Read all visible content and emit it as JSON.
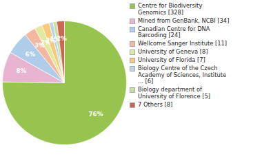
{
  "chart_data": {
    "type": "pie",
    "categories": [
      "Centre for Biodiversity\nGenomics [328]",
      "Mined from GenBank, NCBI [34]",
      "Canadian Centre for DNA\nBarcoding [24]",
      "Wellcome Sanger Institute [11]",
      "University of Geneva [8]",
      "University of Florida [7]",
      "Biology Centre of the Czech\nAcademy of Sciences, Institute\n... [6]",
      "Biology department of\nUniversity of Florence [5]",
      "7 Others [8]"
    ],
    "values": [
      76,
      8,
      6,
      3,
      2,
      2,
      1,
      1,
      2
    ],
    "value_labels": [
      "76%",
      "8%",
      "6%",
      "3%",
      "2%",
      "2%",
      "1%",
      null,
      "2%"
    ],
    "colors": [
      "#97c44e",
      "#e8b4d0",
      "#aecde8",
      "#f4b8a0",
      "#e2e89c",
      "#f7c97a",
      "#b8d4e8",
      "#c8e0a0",
      "#cc6655"
    ],
    "data_labels": true,
    "legend": "right"
  }
}
